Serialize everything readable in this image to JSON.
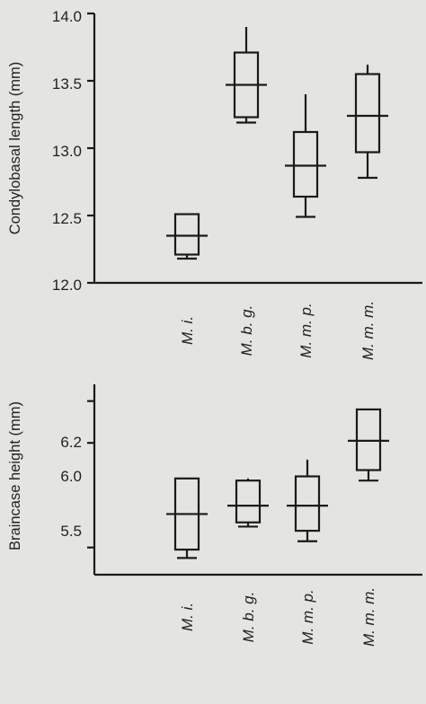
{
  "chart_data": [
    {
      "type": "boxplot",
      "ylabel": "Condylobasal length (mm)",
      "ylim": [
        12.0,
        14.0
      ],
      "yticks": [
        "12.0",
        "12.5",
        "13.0",
        "13.5",
        "14.0"
      ],
      "categories": [
        "M. i.",
        "M. b. g.",
        "M. m. p.",
        "M. m. m."
      ],
      "boxes": [
        {
          "whisker_low": 12.18,
          "q1": 12.21,
          "mean": 12.35,
          "q3": 12.51,
          "whisker_high": 12.51
        },
        {
          "whisker_low": 13.19,
          "q1": 13.23,
          "mean": 13.47,
          "q3": 13.71,
          "whisker_high": 13.9
        },
        {
          "whisker_low": 12.49,
          "q1": 12.64,
          "mean": 12.87,
          "q3": 13.12,
          "whisker_high": 13.4
        },
        {
          "whisker_low": 12.78,
          "q1": 12.97,
          "mean": 13.24,
          "q3": 13.55,
          "whisker_high": 13.62
        }
      ]
    },
    {
      "type": "boxplot",
      "ylabel": "Braincase height (mm)",
      "ylim": [
        5.37,
        6.28
      ],
      "yticks": [
        "5.5",
        "6.0",
        "6.2"
      ],
      "categories": [
        "M. i.",
        "M. b. g.",
        "M. m. p.",
        "M. m. m."
      ],
      "boxes": [
        {
          "whisker_low": 5.45,
          "q1": 5.49,
          "mean": 5.66,
          "q3": 5.83,
          "whisker_high": 5.83
        },
        {
          "whisker_low": 5.6,
          "q1": 5.62,
          "mean": 5.7,
          "q3": 5.82,
          "whisker_high": 5.83
        },
        {
          "whisker_low": 5.53,
          "q1": 5.58,
          "mean": 5.7,
          "q3": 5.84,
          "whisker_high": 5.92
        },
        {
          "whisker_low": 5.82,
          "q1": 5.87,
          "mean": 6.01,
          "q3": 6.16,
          "whisker_high": 6.16
        }
      ]
    }
  ]
}
